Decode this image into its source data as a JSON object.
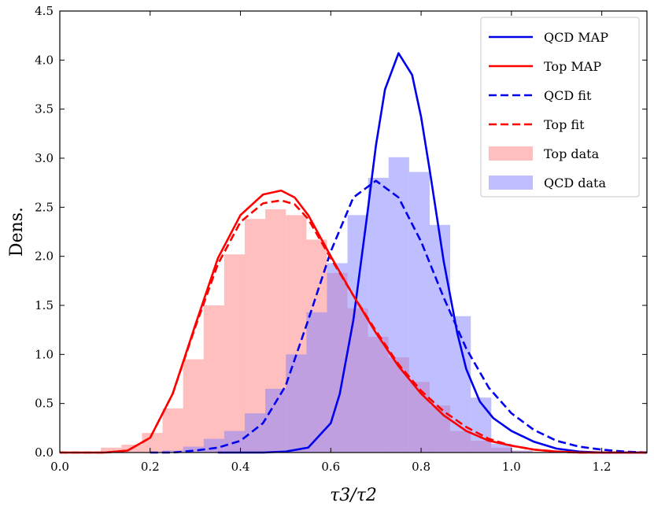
{
  "chart_data": {
    "type": "histogram+line",
    "xlabel": "τ3/τ2",
    "ylabel": "Dens.",
    "xlim": [
      0.0,
      1.3
    ],
    "ylim": [
      0.0,
      4.5
    ],
    "xticks": [
      0.0,
      0.2,
      0.4,
      0.6,
      0.8,
      1.0,
      1.2
    ],
    "xtick_labels": [
      "0.0",
      "0.2",
      "0.4",
      "0.6",
      "0.8",
      "1.0",
      "1.2"
    ],
    "yticks": [
      0.0,
      0.5,
      1.0,
      1.5,
      2.0,
      2.5,
      3.0,
      3.5,
      4.0,
      4.5
    ],
    "ytick_labels": [
      "0.0",
      "0.5",
      "1.0",
      "1.5",
      "2.0",
      "2.5",
      "3.0",
      "3.5",
      "4.0",
      "4.5"
    ],
    "grid": false,
    "legend_position": "top-right",
    "colors": {
      "top": "#ff0000",
      "qcd": "#0000ee",
      "top_fill": "#ff7f7f",
      "qcd_fill": "#7f7fff"
    },
    "histograms": [
      {
        "name": "Top data",
        "color": "#ff7f7f",
        "bin_edges": [
          0.0,
          0.0455,
          0.091,
          0.1365,
          0.182,
          0.2275,
          0.273,
          0.3185,
          0.364,
          0.4095,
          0.455,
          0.5005,
          0.546,
          0.5915,
          0.637,
          0.6825,
          0.728,
          0.7735,
          0.819,
          0.8645,
          0.91,
          0.9555,
          1.001,
          1.0465,
          1.092,
          1.1375,
          1.183,
          1.2285,
          1.274,
          1.3
        ],
        "values": [
          0.0,
          0.0,
          0.05,
          0.08,
          0.2,
          0.45,
          0.95,
          1.5,
          2.02,
          2.38,
          2.48,
          2.42,
          2.17,
          1.83,
          1.47,
          1.18,
          0.97,
          0.72,
          0.48,
          0.22,
          0.12,
          0.05,
          0.02,
          0.01,
          0.0,
          0.0,
          0.0,
          0.0,
          0.0
        ]
      },
      {
        "name": "QCD data",
        "color": "#7f7fff",
        "bin_edges": [
          0.0,
          0.0455,
          0.091,
          0.1365,
          0.182,
          0.2275,
          0.273,
          0.3185,
          0.364,
          0.4095,
          0.455,
          0.5005,
          0.546,
          0.5915,
          0.637,
          0.6825,
          0.728,
          0.7735,
          0.819,
          0.8645,
          0.91,
          0.9555,
          1.001,
          1.0465,
          1.092,
          1.1375,
          1.183,
          1.2285,
          1.274,
          1.3
        ],
        "values": [
          0.0,
          0.0,
          0.0,
          0.0,
          0.0,
          0.02,
          0.06,
          0.14,
          0.22,
          0.4,
          0.65,
          1.0,
          1.43,
          1.93,
          2.42,
          2.8,
          3.01,
          2.86,
          2.32,
          1.39,
          0.56,
          0.09,
          0.02,
          0.0,
          0.0,
          0.0,
          0.0,
          0.0,
          0.0
        ]
      }
    ],
    "series": [
      {
        "name": "QCD MAP",
        "color": "#0000ee",
        "dash": "solid",
        "x": [
          0.35,
          0.4,
          0.45,
          0.5,
          0.55,
          0.6,
          0.62,
          0.65,
          0.68,
          0.7,
          0.72,
          0.75,
          0.78,
          0.8,
          0.82,
          0.85,
          0.88,
          0.9,
          0.93,
          0.96,
          1.0,
          1.05,
          1.1,
          1.15,
          1.2,
          1.3
        ],
        "y": [
          0.0,
          0.0,
          0.0,
          0.01,
          0.05,
          0.3,
          0.6,
          1.35,
          2.4,
          3.13,
          3.7,
          4.07,
          3.85,
          3.42,
          2.85,
          1.95,
          1.22,
          0.85,
          0.52,
          0.35,
          0.22,
          0.11,
          0.04,
          0.01,
          0.0,
          0.0
        ]
      },
      {
        "name": "Top MAP",
        "color": "#ff0000",
        "dash": "solid",
        "x": [
          0.0,
          0.1,
          0.15,
          0.2,
          0.25,
          0.3,
          0.35,
          0.4,
          0.45,
          0.49,
          0.52,
          0.55,
          0.6,
          0.65,
          0.7,
          0.75,
          0.8,
          0.85,
          0.9,
          0.95,
          1.0,
          1.05,
          1.1,
          1.15,
          1.2,
          1.3
        ],
        "y": [
          0.0,
          0.0,
          0.02,
          0.15,
          0.6,
          1.3,
          1.98,
          2.42,
          2.63,
          2.67,
          2.6,
          2.42,
          2.0,
          1.6,
          1.22,
          0.88,
          0.6,
          0.38,
          0.22,
          0.12,
          0.07,
          0.03,
          0.01,
          0.0,
          0.0,
          0.0
        ]
      },
      {
        "name": "QCD fit",
        "color": "#0000ee",
        "dash": "dashed",
        "x": [
          0.2,
          0.25,
          0.3,
          0.35,
          0.4,
          0.45,
          0.5,
          0.55,
          0.6,
          0.65,
          0.7,
          0.75,
          0.8,
          0.85,
          0.9,
          0.95,
          1.0,
          1.05,
          1.1,
          1.15,
          1.2,
          1.25,
          1.3
        ],
        "y": [
          0.0,
          0.0,
          0.02,
          0.05,
          0.12,
          0.3,
          0.68,
          1.35,
          2.05,
          2.6,
          2.77,
          2.6,
          2.15,
          1.58,
          1.06,
          0.66,
          0.4,
          0.23,
          0.12,
          0.06,
          0.03,
          0.01,
          0.0
        ]
      },
      {
        "name": "Top fit",
        "color": "#ff0000",
        "dash": "dashed",
        "x": [
          0.0,
          0.1,
          0.15,
          0.2,
          0.25,
          0.3,
          0.35,
          0.4,
          0.45,
          0.49,
          0.52,
          0.55,
          0.6,
          0.65,
          0.7,
          0.75,
          0.8,
          0.85,
          0.9,
          0.95,
          1.0,
          1.05,
          1.1,
          1.15,
          1.2,
          1.3
        ],
        "y": [
          0.0,
          0.0,
          0.02,
          0.15,
          0.6,
          1.28,
          1.92,
          2.35,
          2.54,
          2.57,
          2.53,
          2.38,
          1.98,
          1.6,
          1.24,
          0.9,
          0.63,
          0.42,
          0.26,
          0.14,
          0.07,
          0.03,
          0.01,
          0.0,
          0.0,
          0.0
        ]
      }
    ],
    "legend": [
      {
        "label": "QCD MAP",
        "kind": "line",
        "color": "#0000ee",
        "dash": "solid"
      },
      {
        "label": "Top MAP",
        "kind": "line",
        "color": "#ff0000",
        "dash": "solid"
      },
      {
        "label": "QCD fit",
        "kind": "line",
        "color": "#0000ee",
        "dash": "dashed"
      },
      {
        "label": "Top fit",
        "kind": "line",
        "color": "#ff0000",
        "dash": "dashed"
      },
      {
        "label": "Top data",
        "kind": "patch",
        "color": "#ff7f7f"
      },
      {
        "label": "QCD data",
        "kind": "patch",
        "color": "#7f7fff"
      }
    ]
  }
}
